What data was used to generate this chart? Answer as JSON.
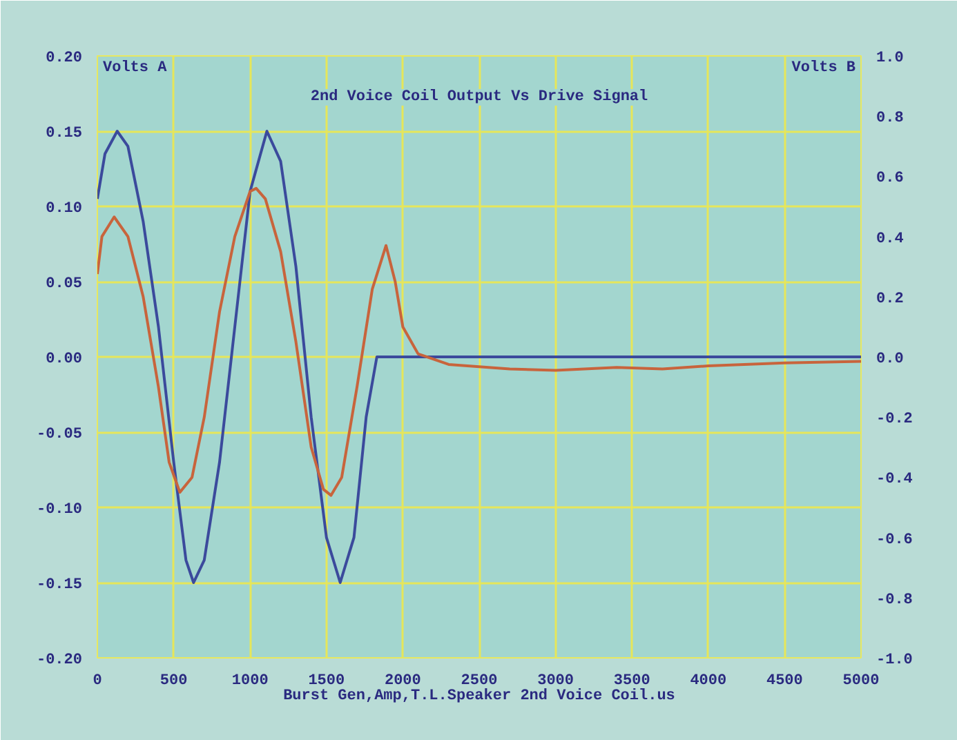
{
  "chart_data": {
    "type": "line",
    "title": "2nd Voice Coil Output Vs Drive Signal",
    "xlabel": "Burst Gen,Amp,T.L.Speaker 2nd Voice Coil.us",
    "ylabel": "Volts A",
    "y2label": "Volts B",
    "xlim": [
      0,
      5000
    ],
    "xticks": [
      0,
      500,
      1000,
      1500,
      2000,
      2500,
      3000,
      3500,
      4000,
      4500,
      5000
    ],
    "ylim": [
      -0.2,
      0.2
    ],
    "yticks": [
      {
        "value": -0.2,
        "label": "-0.20"
      },
      {
        "value": -0.15,
        "label": "-0.15"
      },
      {
        "value": -0.1,
        "label": "-0.10"
      },
      {
        "value": -0.05,
        "label": "-0.05"
      },
      {
        "value": 0,
        "label": "0.00"
      },
      {
        "value": 0.05,
        "label": "0.05"
      },
      {
        "value": 0.1,
        "label": "0.10"
      },
      {
        "value": 0.15,
        "label": "0.15"
      },
      {
        "value": 0.2,
        "label": "0.20"
      }
    ],
    "y2lim": [
      -1.0,
      1.0
    ],
    "y2ticks": [
      {
        "value": -1.0,
        "label": "-1.0"
      },
      {
        "value": -0.8,
        "label": "-0.8"
      },
      {
        "value": -0.6,
        "label": "-0.6"
      },
      {
        "value": -0.4,
        "label": "-0.4"
      },
      {
        "value": -0.2,
        "label": "-0.2"
      },
      {
        "value": 0,
        "label": "0.0"
      },
      {
        "value": 0.2,
        "label": "0.2"
      },
      {
        "value": 0.4,
        "label": "0.4"
      },
      {
        "value": 0.6,
        "label": "0.6"
      },
      {
        "value": 0.8,
        "label": "0.8"
      },
      {
        "value": 1.0,
        "label": "1.0"
      }
    ],
    "grid": true,
    "line_style": "solid",
    "series": [
      {
        "color": "#3b4a9c",
        "x": [
          0,
          50,
          130,
          200,
          300,
          400,
          500,
          580,
          630,
          700,
          800,
          900,
          1000,
          1110,
          1200,
          1300,
          1400,
          1500,
          1590,
          1680,
          1760,
          1830,
          5000
        ],
        "values": [
          0.105,
          0.135,
          0.15,
          0.14,
          0.09,
          0.02,
          -0.07,
          -0.135,
          -0.15,
          -0.135,
          -0.07,
          0.02,
          0.11,
          0.15,
          0.13,
          0.06,
          -0.04,
          -0.12,
          -0.15,
          -0.12,
          -0.04,
          0.0,
          0.0
        ]
      },
      {
        "color": "#c8643c",
        "x": [
          0,
          30,
          110,
          200,
          300,
          400,
          470,
          540,
          620,
          700,
          800,
          900,
          1000,
          1040,
          1100,
          1200,
          1300,
          1400,
          1480,
          1530,
          1600,
          1700,
          1800,
          1890,
          1950,
          2000,
          2100,
          2300,
          2700,
          3000,
          3400,
          3700,
          4000,
          4500,
          5000
        ],
        "values": [
          0.055,
          0.08,
          0.093,
          0.08,
          0.04,
          -0.02,
          -0.07,
          -0.09,
          -0.08,
          -0.04,
          0.03,
          0.08,
          0.11,
          0.112,
          0.105,
          0.07,
          0.01,
          -0.06,
          -0.088,
          -0.092,
          -0.08,
          -0.02,
          0.045,
          0.074,
          0.05,
          0.02,
          0.002,
          -0.005,
          -0.008,
          -0.009,
          -0.007,
          -0.008,
          -0.006,
          -0.004,
          -0.003
        ]
      }
    ]
  }
}
